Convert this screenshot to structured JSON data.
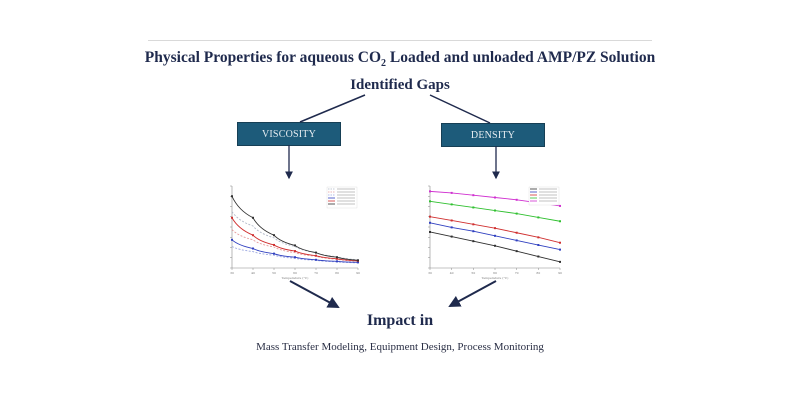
{
  "header": {
    "title_prefix": "Physical Properties for aqueous CO",
    "title_subscript": "2",
    "title_suffix": " Loaded and unloaded AMP/PZ Solution",
    "subtitle": "Identified Gaps"
  },
  "boxes": {
    "viscosity": "VISCOSITY",
    "density": "DENSITY"
  },
  "impact": {
    "title": "Impact in",
    "items": "Mass Transfer Modeling, Equipment Design, Process Monitoring"
  },
  "colors": {
    "title_text": "#1f2a4d",
    "box_fill": "#1d5b7a",
    "arrow": "#1f2a4d"
  },
  "chart_data": [
    {
      "type": "line",
      "title": "",
      "xlabel": "Temperature (°C)",
      "ylabel": "Viscosity (mPa·s)",
      "x": [
        30,
        40,
        50,
        60,
        70,
        80,
        90
      ],
      "xlim": [
        30,
        90
      ],
      "ylim": [
        0,
        16
      ],
      "legend_position": "upper right",
      "series": [
        {
          "name": "series 1 (dashed)",
          "color": "#b0b8c8",
          "style": "dashed",
          "values": [
            11.0,
            8.2,
            5.9,
            4.2,
            3.0,
            2.2,
            1.6
          ]
        },
        {
          "name": "series 2 (dashed)",
          "color": "#e59a9a",
          "style": "dashed",
          "values": [
            7.5,
            5.5,
            4.1,
            3.0,
            2.3,
            1.7,
            1.3
          ]
        },
        {
          "name": "series 3 (dashed)",
          "color": "#9aa6e0",
          "style": "dashed",
          "values": [
            4.2,
            3.2,
            2.5,
            1.9,
            1.5,
            1.2,
            1.0
          ]
        },
        {
          "name": "series 4",
          "color": "#3040c0",
          "style": "solid",
          "values": [
            5.5,
            3.8,
            2.8,
            2.1,
            1.6,
            1.3,
            1.1
          ]
        },
        {
          "name": "series 5",
          "color": "#d03030",
          "style": "solid",
          "values": [
            9.8,
            6.4,
            4.5,
            3.3,
            2.4,
            1.8,
            1.4
          ]
        },
        {
          "name": "series 6",
          "color": "#303030",
          "style": "solid",
          "values": [
            14.0,
            9.8,
            6.4,
            4.4,
            3.0,
            2.1,
            1.5
          ]
        }
      ]
    },
    {
      "type": "line",
      "title": "",
      "xlabel": "Temperature (°C)",
      "ylabel": "ρ (g/cm³)",
      "x": [
        30,
        40,
        50,
        60,
        70,
        80,
        90
      ],
      "xlim": [
        30,
        90
      ],
      "legend_position": "upper right",
      "series": [
        {
          "name": "series 1",
          "color": "#303030",
          "values": [
            0.62,
            0.56,
            0.5,
            0.44,
            0.37,
            0.3,
            0.23
          ]
        },
        {
          "name": "series 2",
          "color": "#3040c0",
          "values": [
            0.74,
            0.68,
            0.63,
            0.57,
            0.51,
            0.45,
            0.39
          ]
        },
        {
          "name": "series 3",
          "color": "#d03030",
          "values": [
            0.82,
            0.77,
            0.72,
            0.67,
            0.61,
            0.55,
            0.48
          ]
        },
        {
          "name": "series 4",
          "color": "#30c030",
          "values": [
            1.02,
            0.98,
            0.94,
            0.9,
            0.86,
            0.81,
            0.76
          ]
        },
        {
          "name": "series 5",
          "color": "#d030d0",
          "values": [
            1.15,
            1.13,
            1.1,
            1.07,
            1.04,
            1.0,
            0.96
          ]
        }
      ]
    }
  ]
}
